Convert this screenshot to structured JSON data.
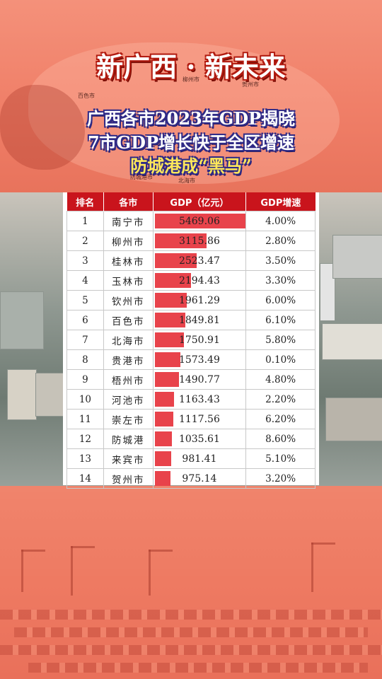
{
  "header": {
    "title": "新广西 · 新未来",
    "subtitle_lines": [
      "广西各市2023年GDP揭晓",
      "7市GDP增长快于全区增速",
      "防城港成“黑马”"
    ]
  },
  "map_labels": [
    "百色市",
    "柳州市",
    "贺州市",
    "防城港市",
    "北海市"
  ],
  "colors": {
    "header_bg": "#c9141c",
    "bar": "#e8434b",
    "title_outline": "#b21b10",
    "subtitle_outline": "#2f2a86",
    "highlight": "#ffe85a"
  },
  "chart_data": {
    "type": "table",
    "columns": [
      "排名",
      "各市",
      "GDP（亿元）",
      "GDP增速"
    ],
    "rows": [
      {
        "rank": "1",
        "city": "南宁市",
        "gdp": "5469.06",
        "growth": "4.00%"
      },
      {
        "rank": "2",
        "city": "柳州市",
        "gdp": "3115.86",
        "growth": "2.80%"
      },
      {
        "rank": "3",
        "city": "桂林市",
        "gdp": "2523.47",
        "growth": "3.50%"
      },
      {
        "rank": "4",
        "city": "玉林市",
        "gdp": "2194.43",
        "growth": "3.30%"
      },
      {
        "rank": "5",
        "city": "钦州市",
        "gdp": "1961.29",
        "growth": "6.00%"
      },
      {
        "rank": "6",
        "city": "百色市",
        "gdp": "1849.81",
        "growth": "6.10%"
      },
      {
        "rank": "7",
        "city": "北海市",
        "gdp": "1750.91",
        "growth": "5.80%"
      },
      {
        "rank": "8",
        "city": "贵港市",
        "gdp": "1573.49",
        "growth": "0.10%"
      },
      {
        "rank": "9",
        "city": "梧州市",
        "gdp": "1490.77",
        "growth": "4.80%"
      },
      {
        "rank": "10",
        "city": "河池市",
        "gdp": "1163.43",
        "growth": "2.20%"
      },
      {
        "rank": "11",
        "city": "崇左市",
        "gdp": "1117.56",
        "growth": "6.20%"
      },
      {
        "rank": "12",
        "city": "防城港",
        "gdp": "1035.61",
        "growth": "8.60%"
      },
      {
        "rank": "13",
        "city": "来宾市",
        "gdp": "981.41",
        "growth": "5.10%"
      },
      {
        "rank": "14",
        "city": "贺州市",
        "gdp": "975.14",
        "growth": "3.20%"
      }
    ],
    "bar_max": 5469.06
  }
}
